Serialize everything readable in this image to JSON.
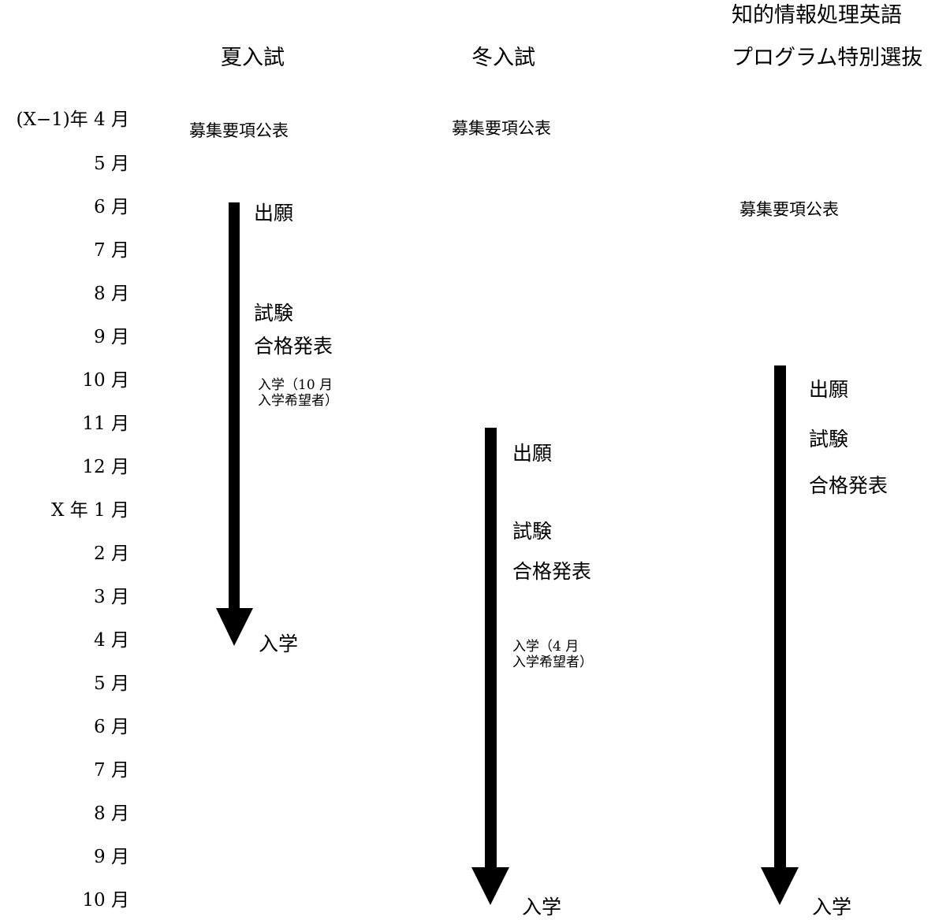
{
  "headers": {
    "summer": "夏入試",
    "winter": "冬入試",
    "special_line1": "知的情報処理英語",
    "special_line2": "プログラム特別選抜"
  },
  "months": [
    "(X−1)年 4 月",
    "5 月",
    "6 月",
    "7 月",
    "8 月",
    "9 月",
    "10 月",
    "11 月",
    "12 月",
    "X 年 1 月",
    "2 月",
    "3 月",
    "4 月",
    "5 月",
    "6 月",
    "7 月",
    "8 月",
    "9 月",
    "10 月"
  ],
  "summer": {
    "announce": "募集要項公表",
    "apply": "出願",
    "exam": "試験",
    "result": "合格発表",
    "entry_oct_line1": "入学（10 月",
    "entry_oct_line2": "入学希望者）",
    "entry": "入学"
  },
  "winter": {
    "announce": "募集要項公表",
    "apply": "出願",
    "exam": "試験",
    "result": "合格発表",
    "entry_apr_line1": "入学（4 月",
    "entry_apr_line2": "入学希望者）",
    "entry": "入学"
  },
  "special": {
    "announce": "募集要項公表",
    "apply": "出願",
    "exam": "試験",
    "result": "合格発表",
    "entry": "入学"
  },
  "colors": {
    "arrow": "#000000",
    "text": "#000000",
    "background": "#ffffff"
  }
}
